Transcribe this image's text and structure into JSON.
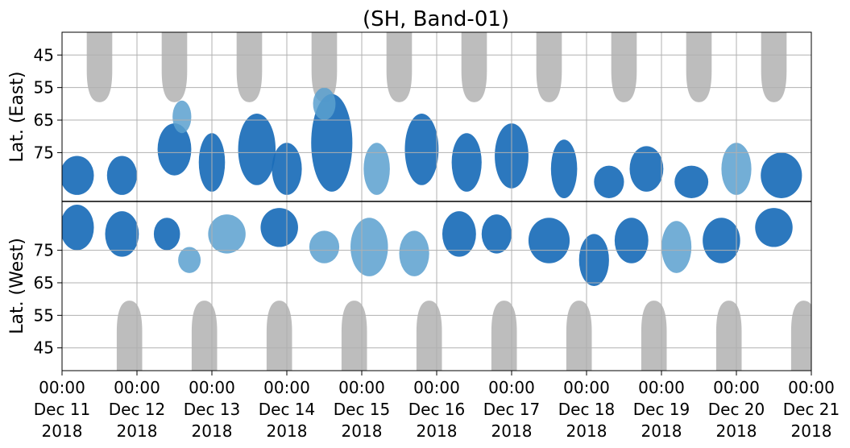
{
  "chart_data": {
    "type": "heatmap",
    "title": "(SH, Band-01)",
    "ylabel_top": "Lat. (East)",
    "ylabel_bottom": "Lat. (West)",
    "x_range": [
      "2018-12-11 00:00",
      "2018-12-21 00:00"
    ],
    "x_ticks": [
      {
        "time": "00:00",
        "date": "Dec 11",
        "year": "2018"
      },
      {
        "time": "00:00",
        "date": "Dec 12",
        "year": "2018"
      },
      {
        "time": "00:00",
        "date": "Dec 13",
        "year": "2018"
      },
      {
        "time": "00:00",
        "date": "Dec 14",
        "year": "2018"
      },
      {
        "time": "00:00",
        "date": "Dec 15",
        "year": "2018"
      },
      {
        "time": "00:00",
        "date": "Dec 16",
        "year": "2018"
      },
      {
        "time": "00:00",
        "date": "Dec 17",
        "year": "2018"
      },
      {
        "time": "00:00",
        "date": "Dec 18",
        "year": "2018"
      },
      {
        "time": "00:00",
        "date": "Dec 19",
        "year": "2018"
      },
      {
        "time": "00:00",
        "date": "Dec 20",
        "year": "2018"
      },
      {
        "time": "00:00",
        "date": "Dec 21",
        "year": "2018"
      }
    ],
    "y_top_ticks": [
      "45",
      "55",
      "65",
      "75"
    ],
    "y_bottom_ticks": [
      "75",
      "65",
      "55",
      "45"
    ],
    "y_top_range": [
      38,
      90
    ],
    "y_bottom_range": [
      90,
      38
    ],
    "grid": true,
    "colors": {
      "night": "#bdbdbd",
      "strong": "#1a6cb8",
      "weak": "#5aa0cf",
      "divider": "#000000",
      "grid": "#b0b0b0"
    },
    "night_east": [
      {
        "day": 11.5,
        "edge_lat": 59.5
      },
      {
        "day": 12.5,
        "edge_lat": 59.5
      },
      {
        "day": 13.5,
        "edge_lat": 59.5
      },
      {
        "day": 14.5,
        "edge_lat": 59.5
      },
      {
        "day": 15.5,
        "edge_lat": 59.5
      },
      {
        "day": 16.5,
        "edge_lat": 59.5
      },
      {
        "day": 17.5,
        "edge_lat": 59.5
      },
      {
        "day": 18.5,
        "edge_lat": 59.5
      },
      {
        "day": 19.5,
        "edge_lat": 59.5
      },
      {
        "day": 20.5,
        "edge_lat": 59.5
      }
    ],
    "night_west": [
      {
        "day": 11.9,
        "edge_lat": 59.5
      },
      {
        "day": 12.9,
        "edge_lat": 59.5
      },
      {
        "day": 13.9,
        "edge_lat": 59.5
      },
      {
        "day": 14.9,
        "edge_lat": 59.5
      },
      {
        "day": 15.9,
        "edge_lat": 59.5
      },
      {
        "day": 16.9,
        "edge_lat": 59.5
      },
      {
        "day": 17.9,
        "edge_lat": 59.5
      },
      {
        "day": 18.9,
        "edge_lat": 59.5
      },
      {
        "day": 19.9,
        "edge_lat": 59.5
      },
      {
        "day": 20.9,
        "edge_lat": 59.5
      }
    ],
    "activity_east": [
      {
        "day": 11.2,
        "lat": 82,
        "lat_span": 12,
        "day_span": 0.45,
        "level": "strong"
      },
      {
        "day": 11.8,
        "lat": 82,
        "lat_span": 12,
        "day_span": 0.4,
        "level": "strong"
      },
      {
        "day": 12.5,
        "lat": 74,
        "lat_span": 16,
        "day_span": 0.45,
        "level": "strong"
      },
      {
        "day": 12.6,
        "lat": 64,
        "lat_span": 10,
        "day_span": 0.25,
        "level": "weak"
      },
      {
        "day": 13.0,
        "lat": 78,
        "lat_span": 18,
        "day_span": 0.35,
        "level": "strong"
      },
      {
        "day": 13.6,
        "lat": 74,
        "lat_span": 22,
        "day_span": 0.5,
        "level": "strong"
      },
      {
        "day": 14.0,
        "lat": 80,
        "lat_span": 16,
        "day_span": 0.4,
        "level": "strong"
      },
      {
        "day": 14.6,
        "lat": 72,
        "lat_span": 30,
        "day_span": 0.55,
        "level": "strong"
      },
      {
        "day": 14.5,
        "lat": 60,
        "lat_span": 10,
        "day_span": 0.3,
        "level": "weak"
      },
      {
        "day": 15.2,
        "lat": 80,
        "lat_span": 16,
        "day_span": 0.35,
        "level": "weak"
      },
      {
        "day": 15.8,
        "lat": 74,
        "lat_span": 22,
        "day_span": 0.45,
        "level": "strong"
      },
      {
        "day": 16.4,
        "lat": 78,
        "lat_span": 18,
        "day_span": 0.4,
        "level": "strong"
      },
      {
        "day": 17.0,
        "lat": 76,
        "lat_span": 20,
        "day_span": 0.45,
        "level": "strong"
      },
      {
        "day": 17.7,
        "lat": 80,
        "lat_span": 18,
        "day_span": 0.35,
        "level": "strong"
      },
      {
        "day": 18.3,
        "lat": 84,
        "lat_span": 10,
        "day_span": 0.4,
        "level": "strong"
      },
      {
        "day": 18.8,
        "lat": 80,
        "lat_span": 14,
        "day_span": 0.45,
        "level": "strong"
      },
      {
        "day": 19.4,
        "lat": 84,
        "lat_span": 10,
        "day_span": 0.45,
        "level": "strong"
      },
      {
        "day": 20.0,
        "lat": 80,
        "lat_span": 16,
        "day_span": 0.4,
        "level": "weak"
      },
      {
        "day": 20.6,
        "lat": 82,
        "lat_span": 14,
        "day_span": 0.55,
        "level": "strong"
      }
    ],
    "activity_west": [
      {
        "day": 11.2,
        "lat": 82,
        "lat_span": 14,
        "day_span": 0.45,
        "level": "strong"
      },
      {
        "day": 11.8,
        "lat": 80,
        "lat_span": 14,
        "day_span": 0.45,
        "level": "strong"
      },
      {
        "day": 12.4,
        "lat": 80,
        "lat_span": 10,
        "day_span": 0.35,
        "level": "strong"
      },
      {
        "day": 12.7,
        "lat": 72,
        "lat_span": 8,
        "day_span": 0.3,
        "level": "weak"
      },
      {
        "day": 13.2,
        "lat": 80,
        "lat_span": 12,
        "day_span": 0.5,
        "level": "weak"
      },
      {
        "day": 13.9,
        "lat": 82,
        "lat_span": 12,
        "day_span": 0.5,
        "level": "strong"
      },
      {
        "day": 14.5,
        "lat": 76,
        "lat_span": 10,
        "day_span": 0.4,
        "level": "weak"
      },
      {
        "day": 15.1,
        "lat": 76,
        "lat_span": 18,
        "day_span": 0.5,
        "level": "weak"
      },
      {
        "day": 15.7,
        "lat": 74,
        "lat_span": 14,
        "day_span": 0.4,
        "level": "weak"
      },
      {
        "day": 16.3,
        "lat": 80,
        "lat_span": 14,
        "day_span": 0.45,
        "level": "strong"
      },
      {
        "day": 16.8,
        "lat": 80,
        "lat_span": 12,
        "day_span": 0.4,
        "level": "strong"
      },
      {
        "day": 17.5,
        "lat": 78,
        "lat_span": 14,
        "day_span": 0.55,
        "level": "strong"
      },
      {
        "day": 18.1,
        "lat": 72,
        "lat_span": 16,
        "day_span": 0.4,
        "level": "strong"
      },
      {
        "day": 18.6,
        "lat": 78,
        "lat_span": 14,
        "day_span": 0.45,
        "level": "strong"
      },
      {
        "day": 19.2,
        "lat": 76,
        "lat_span": 16,
        "day_span": 0.4,
        "level": "weak"
      },
      {
        "day": 19.8,
        "lat": 78,
        "lat_span": 14,
        "day_span": 0.5,
        "level": "strong"
      },
      {
        "day": 20.5,
        "lat": 82,
        "lat_span": 12,
        "day_span": 0.5,
        "level": "strong"
      }
    ]
  }
}
